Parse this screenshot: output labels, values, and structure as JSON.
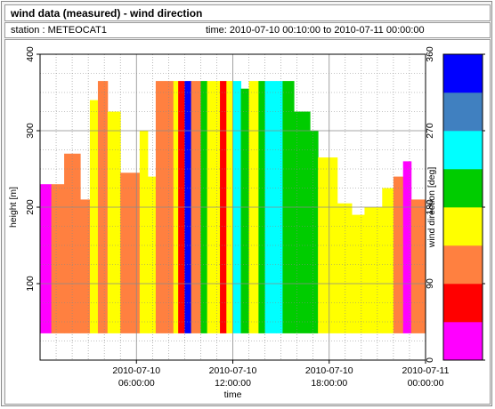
{
  "title": "wind data (measured) - wind direction",
  "station": "station : METEOCAT1",
  "time_range": "time: 2010-07-10 00:10:00 to 2010-07-11 00:00:00",
  "chart_data": {
    "type": "heatmap",
    "xlabel": "time",
    "ylabel": "height [m]",
    "xlim_hours": [
      0,
      24
    ],
    "ylim": [
      0,
      400
    ],
    "grid": true,
    "x_ticks": [
      {
        "hour": 6,
        "line1": "2010-07-10",
        "line2": "06:00:00"
      },
      {
        "hour": 12,
        "line1": "2010-07-10",
        "line2": "12:00:00"
      },
      {
        "hour": 18,
        "line1": "2010-07-10",
        "line2": "18:00:00"
      },
      {
        "hour": 24,
        "line1": "2010-07-11",
        "line2": "00:00:00"
      }
    ],
    "y_ticks": [
      "100",
      "200",
      "300",
      "400"
    ],
    "y_tick_values": [
      100,
      200,
      300,
      400
    ],
    "colorbar": {
      "label": "wind direction [deg]",
      "min": 0,
      "max": 360,
      "ticks": [
        "0",
        "90",
        "180",
        "270",
        "360"
      ],
      "tick_values": [
        0,
        90,
        180,
        270,
        360
      ],
      "colors": [
        "#ff00ff",
        "#ff0000",
        "#ff8040",
        "#ffff00",
        "#00cc00",
        "#00ffff",
        "#4080c0",
        "#0000ff"
      ]
    },
    "measured_height_range": [
      35,
      365
    ],
    "segments": [
      {
        "t0": 0.0,
        "t1": 0.7,
        "dir": 35,
        "top": 230
      },
      {
        "t0": 0.7,
        "t1": 1.5,
        "dir": 110,
        "top": 230
      },
      {
        "t0": 1.5,
        "t1": 2.5,
        "dir": 112,
        "top": 270
      },
      {
        "t0": 2.5,
        "t1": 3.1,
        "dir": 105,
        "top": 210
      },
      {
        "t0": 3.1,
        "t1": 3.6,
        "dir": 160,
        "top": 340
      },
      {
        "t0": 3.6,
        "t1": 4.2,
        "dir": 108,
        "top": 365
      },
      {
        "t0": 4.2,
        "t1": 5.0,
        "dir": 160,
        "top": 325
      },
      {
        "t0": 5.0,
        "t1": 6.2,
        "dir": 112,
        "top": 245
      },
      {
        "t0": 6.2,
        "t1": 6.7,
        "dir": 160,
        "top": 300
      },
      {
        "t0": 6.7,
        "t1": 7.2,
        "dir": 165,
        "top": 240
      },
      {
        "t0": 7.2,
        "t1": 7.8,
        "dir": 110,
        "top": 365
      },
      {
        "t0": 7.8,
        "t1": 8.3,
        "dir": 112,
        "top": 365
      },
      {
        "t0": 8.3,
        "t1": 8.6,
        "dir": 160,
        "top": 365
      },
      {
        "t0": 8.6,
        "t1": 9.0,
        "dir": 60,
        "top": 365
      },
      {
        "t0": 9.0,
        "t1": 9.4,
        "dir": 340,
        "top": 365
      },
      {
        "t0": 9.4,
        "t1": 9.7,
        "dir": 105,
        "top": 365
      },
      {
        "t0": 9.7,
        "t1": 10.0,
        "dir": 130,
        "top": 365
      },
      {
        "t0": 10.0,
        "t1": 10.4,
        "dir": 210,
        "top": 365
      },
      {
        "t0": 10.4,
        "t1": 11.2,
        "dir": 160,
        "top": 365
      },
      {
        "t0": 11.2,
        "t1": 11.6,
        "dir": 70,
        "top": 365
      },
      {
        "t0": 11.6,
        "t1": 12.0,
        "dir": 160,
        "top": 365
      },
      {
        "t0": 12.0,
        "t1": 12.5,
        "dir": 255,
        "top": 365
      },
      {
        "t0": 12.5,
        "t1": 13.0,
        "dir": 200,
        "top": 355
      },
      {
        "t0": 13.0,
        "t1": 13.6,
        "dir": 160,
        "top": 365
      },
      {
        "t0": 13.6,
        "t1": 14.0,
        "dir": 205,
        "top": 365
      },
      {
        "t0": 14.0,
        "t1": 14.7,
        "dir": 225,
        "top": 365
      },
      {
        "t0": 14.7,
        "t1": 15.1,
        "dir": 245,
        "top": 365
      },
      {
        "t0": 15.1,
        "t1": 15.8,
        "dir": 205,
        "top": 365
      },
      {
        "t0": 15.8,
        "t1": 16.8,
        "dir": 210,
        "top": 325
      },
      {
        "t0": 16.8,
        "t1": 17.3,
        "dir": 200,
        "top": 300
      },
      {
        "t0": 17.3,
        "t1": 18.5,
        "dir": 160,
        "top": 265
      },
      {
        "t0": 18.5,
        "t1": 19.4,
        "dir": 160,
        "top": 205
      },
      {
        "t0": 19.4,
        "t1": 20.2,
        "dir": 165,
        "top": 190
      },
      {
        "t0": 20.2,
        "t1": 21.3,
        "dir": 165,
        "top": 200
      },
      {
        "t0": 21.3,
        "t1": 22.0,
        "dir": 160,
        "top": 225
      },
      {
        "t0": 22.0,
        "t1": 22.6,
        "dir": 112,
        "top": 240
      },
      {
        "t0": 22.6,
        "t1": 23.1,
        "dir": 40,
        "top": 260
      },
      {
        "t0": 23.1,
        "t1": 24.0,
        "dir": 112,
        "top": 210
      }
    ]
  }
}
